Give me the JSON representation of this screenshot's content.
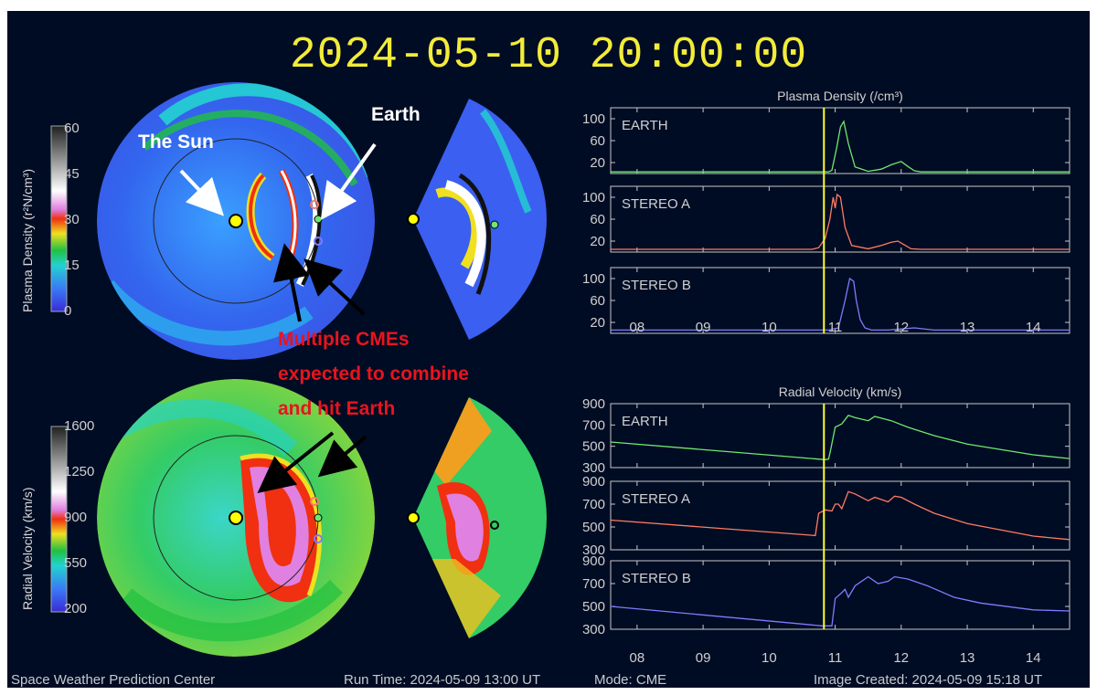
{
  "timestamp": "2024-05-10  20:00:00",
  "density_colorbar": {
    "title": "Plasma Density (r²N/cm³)",
    "ticks": [
      "60",
      "45",
      "30",
      "15",
      "0"
    ]
  },
  "velocity_colorbar": {
    "title": "Radial Velocity (km/s)",
    "ticks": [
      "1600",
      "1250",
      "900",
      "550",
      "200"
    ]
  },
  "annotations": {
    "sun": "The Sun",
    "earth": "Earth",
    "cme_line1": "Multiple CMEs",
    "cme_line2": "expected to combine",
    "cme_line3": "and hit Earth"
  },
  "footer": {
    "center": "Space Weather Prediction Center",
    "run_time": "Run Time: 2024-05-09 13:00 UT",
    "mode": "Mode: CME",
    "created": "Image Created: 2024-05-09 15:18 UT"
  },
  "colors": {
    "earth": "#6fe86f",
    "stereo_a": "#ff7b62",
    "stereo_b": "#7f7bff",
    "time_marker": "#ffff33"
  },
  "chart_data": [
    {
      "type": "line",
      "title": "Plasma Density (/cm³)",
      "x_ticks": [
        "08",
        "09",
        "10",
        "11",
        "12",
        "13",
        "14"
      ],
      "xlim": [
        7.6,
        14.55
      ],
      "current_time": 10.83,
      "panels": [
        {
          "name": "EARTH",
          "color": "#6fe86f",
          "ylim": [
            0,
            120
          ],
          "y_ticks": [
            "100",
            "60",
            "20"
          ],
          "x": [
            7.6,
            10.9,
            10.95,
            11.02,
            11.08,
            11.13,
            11.2,
            11.3,
            11.5,
            11.7,
            11.85,
            12.0,
            12.1,
            12.2,
            12.3,
            14.55
          ],
          "y": [
            3,
            3,
            6,
            45,
            85,
            95,
            55,
            12,
            4,
            8,
            16,
            22,
            13,
            5,
            3,
            3
          ]
        },
        {
          "name": "STEREO A",
          "color": "#ff7b62",
          "ylim": [
            0,
            120
          ],
          "y_ticks": [
            "100",
            "60",
            "20"
          ],
          "x": [
            7.6,
            10.65,
            10.75,
            10.85,
            10.92,
            10.97,
            11.0,
            11.03,
            11.08,
            11.15,
            11.25,
            11.5,
            11.7,
            11.85,
            11.95,
            12.05,
            12.15,
            12.3,
            14.55
          ],
          "y": [
            5,
            5,
            8,
            25,
            60,
            100,
            80,
            105,
            100,
            45,
            12,
            6,
            12,
            18,
            20,
            13,
            6,
            5,
            5
          ]
        },
        {
          "name": "STEREO B",
          "color": "#7f7bff",
          "ylim": [
            0,
            120
          ],
          "y_ticks": [
            "100",
            "60",
            "20"
          ],
          "x": [
            7.6,
            10.9,
            11.05,
            11.15,
            11.22,
            11.28,
            11.32,
            11.38,
            11.45,
            11.55,
            11.8,
            12.2,
            12.5,
            14.55
          ],
          "y": [
            6,
            6,
            10,
            60,
            100,
            95,
            60,
            25,
            10,
            6,
            6,
            10,
            6,
            6
          ]
        }
      ]
    },
    {
      "type": "line",
      "title": "Radial Velocity (km/s)",
      "x_ticks": [
        "08",
        "09",
        "10",
        "11",
        "12",
        "13",
        "14"
      ],
      "xlim": [
        7.6,
        14.55
      ],
      "current_time": 10.83,
      "panels": [
        {
          "name": "EARTH",
          "color": "#6fe86f",
          "ylim": [
            300,
            900
          ],
          "y_ticks": [
            "900",
            "700",
            "500",
            "300"
          ],
          "x": [
            7.6,
            10.85,
            10.9,
            10.93,
            11.0,
            11.1,
            11.2,
            11.3,
            11.5,
            11.6,
            11.85,
            12.1,
            12.5,
            13.0,
            14.0,
            14.55
          ],
          "y": [
            540,
            375,
            380,
            460,
            680,
            710,
            790,
            770,
            740,
            780,
            740,
            680,
            600,
            520,
            420,
            385
          ]
        },
        {
          "name": "STEREO A",
          "color": "#ff7b62",
          "ylim": [
            300,
            900
          ],
          "y_ticks": [
            "900",
            "700",
            "500",
            "300"
          ],
          "x": [
            7.6,
            10.7,
            10.75,
            10.85,
            10.95,
            11.0,
            11.05,
            11.1,
            11.2,
            11.3,
            11.5,
            11.6,
            11.8,
            11.9,
            12.0,
            12.2,
            12.5,
            13.0,
            14.0,
            14.55
          ],
          "y": [
            560,
            425,
            620,
            650,
            640,
            700,
            700,
            660,
            810,
            790,
            730,
            760,
            720,
            770,
            760,
            700,
            620,
            530,
            420,
            390
          ]
        },
        {
          "name": "STEREO B",
          "color": "#7f7bff",
          "ylim": [
            300,
            900
          ],
          "y_ticks": [
            "900",
            "700",
            "500",
            "300"
          ],
          "x": [
            7.6,
            10.8,
            10.95,
            11.0,
            11.1,
            11.15,
            11.2,
            11.3,
            11.5,
            11.65,
            11.8,
            11.9,
            12.1,
            12.4,
            12.8,
            13.2,
            14.0,
            14.55
          ],
          "y": [
            500,
            330,
            330,
            570,
            620,
            650,
            580,
            680,
            760,
            700,
            720,
            760,
            740,
            680,
            580,
            530,
            470,
            460
          ]
        }
      ]
    }
  ]
}
